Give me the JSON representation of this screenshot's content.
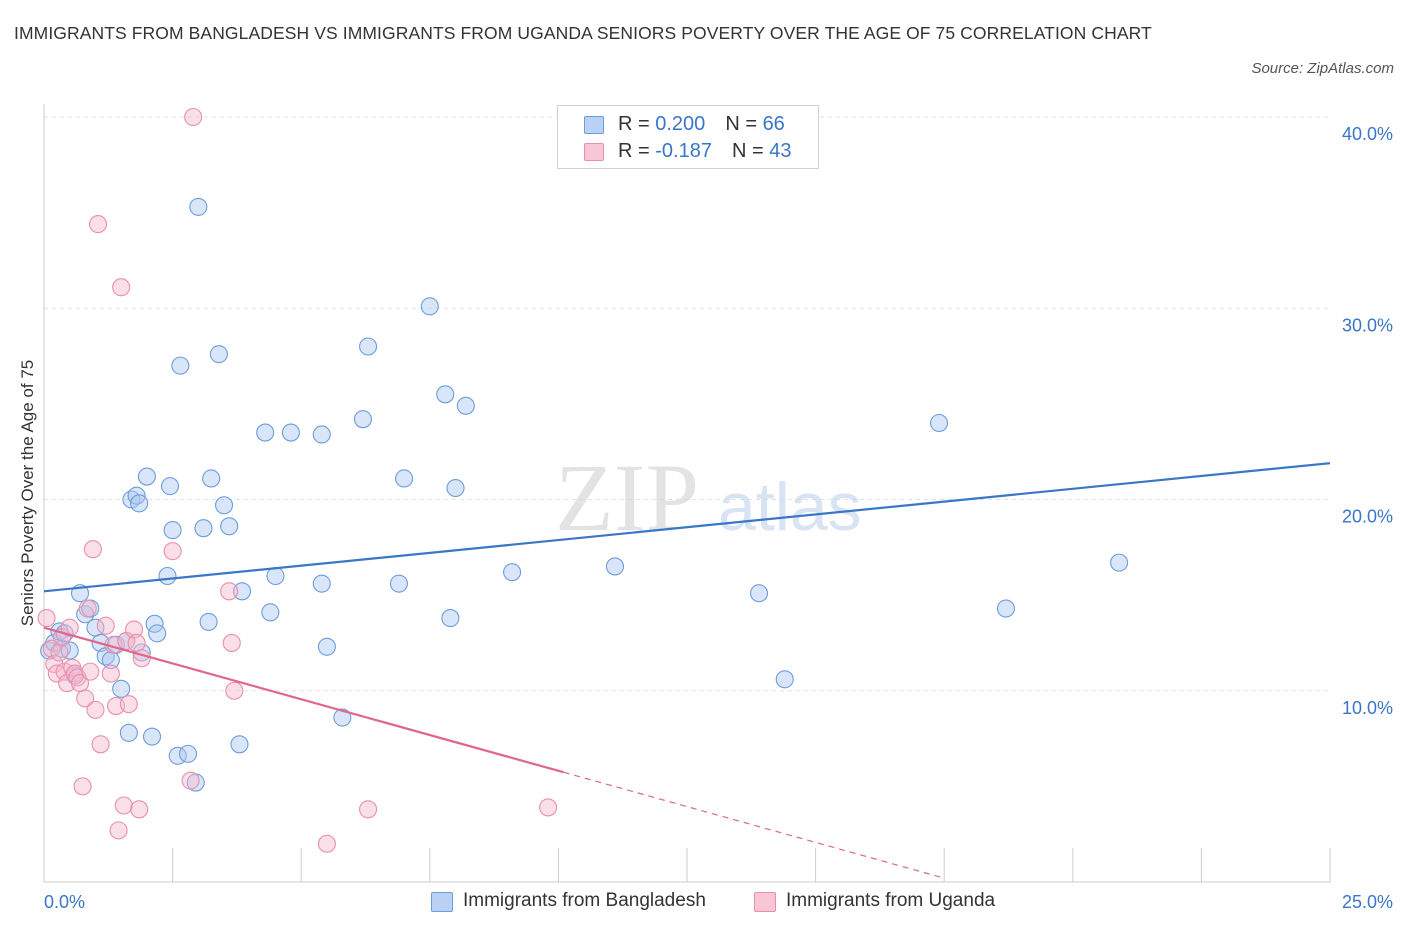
{
  "title": "IMMIGRANTS FROM BANGLADESH VS IMMIGRANTS FROM UGANDA SENIORS POVERTY OVER THE AGE OF 75 CORRELATION CHART",
  "source": "Source: ZipAtlas.com",
  "watermark": {
    "zip": "ZIP",
    "atlas": "atlas"
  },
  "colors": {
    "blue": "#3a76c8",
    "blue_fill": "#aac8f2",
    "pink": "#e0658f",
    "pink_fill": "#f7b8cc",
    "grid": "#e2e2e2"
  },
  "legend": {
    "rows": [
      {
        "r_label": "R = ",
        "r_value": "0.200",
        "n_label": "N = ",
        "n_value": "66"
      },
      {
        "r_label": "R = ",
        "r_value": "-0.187",
        "n_label": "N = ",
        "n_value": "43"
      }
    ]
  },
  "chart_data": {
    "type": "scatter",
    "title": "IMMIGRANTS FROM BANGLADESH VS IMMIGRANTS FROM UGANDA SENIORS POVERTY OVER THE AGE OF 75 CORRELATION CHART",
    "xlabel": "",
    "ylabel": "Seniors Poverty Over the Age of 75",
    "xlim": [
      0,
      25
    ],
    "ylim": [
      0,
      40
    ],
    "x_tick_labels": [
      "0.0%",
      "25.0%"
    ],
    "y_ticks": [
      10,
      20,
      30,
      40
    ],
    "y_tick_labels": [
      "10.0%",
      "20.0%",
      "30.0%",
      "40.0%"
    ],
    "grid": true,
    "legend_position": "top-center",
    "series": [
      {
        "name": "Immigrants from Bangladesh",
        "color": "#3a76c8",
        "trend": {
          "x": [
            0,
            25
          ],
          "y": [
            15.2,
            21.9
          ],
          "solid_to": 25
        },
        "points": [
          [
            0.1,
            12.1
          ],
          [
            0.2,
            12.5
          ],
          [
            0.3,
            13.1
          ],
          [
            0.35,
            12.2
          ],
          [
            0.4,
            13.0
          ],
          [
            0.5,
            12.1
          ],
          [
            0.6,
            10.8
          ],
          [
            0.7,
            15.1
          ],
          [
            0.8,
            14.0
          ],
          [
            0.9,
            14.3
          ],
          [
            1.0,
            13.3
          ],
          [
            1.1,
            12.5
          ],
          [
            1.2,
            11.8
          ],
          [
            1.3,
            11.6
          ],
          [
            1.4,
            12.4
          ],
          [
            1.5,
            10.1
          ],
          [
            1.6,
            12.6
          ],
          [
            1.65,
            7.8
          ],
          [
            1.7,
            20.0
          ],
          [
            1.8,
            20.2
          ],
          [
            1.85,
            19.8
          ],
          [
            1.9,
            12.0
          ],
          [
            2.0,
            21.2
          ],
          [
            2.1,
            7.6
          ],
          [
            2.15,
            13.5
          ],
          [
            2.2,
            13.0
          ],
          [
            2.4,
            16.0
          ],
          [
            2.45,
            20.7
          ],
          [
            2.5,
            18.4
          ],
          [
            2.6,
            6.6
          ],
          [
            2.65,
            27.0
          ],
          [
            2.8,
            6.7
          ],
          [
            2.95,
            5.2
          ],
          [
            3.0,
            35.3
          ],
          [
            3.1,
            18.5
          ],
          [
            3.2,
            13.6
          ],
          [
            3.25,
            21.1
          ],
          [
            3.4,
            27.6
          ],
          [
            3.5,
            19.7
          ],
          [
            3.6,
            18.6
          ],
          [
            3.8,
            7.2
          ],
          [
            3.85,
            15.2
          ],
          [
            4.3,
            23.5
          ],
          [
            4.4,
            14.1
          ],
          [
            4.5,
            16.0
          ],
          [
            4.8,
            23.5
          ],
          [
            5.4,
            23.4
          ],
          [
            5.4,
            15.6
          ],
          [
            5.5,
            12.3
          ],
          [
            5.8,
            8.6
          ],
          [
            6.2,
            24.2
          ],
          [
            6.3,
            28.0
          ],
          [
            6.9,
            15.6
          ],
          [
            7.0,
            21.1
          ],
          [
            7.5,
            30.1
          ],
          [
            7.8,
            25.5
          ],
          [
            7.9,
            13.8
          ],
          [
            8.0,
            20.6
          ],
          [
            8.2,
            24.9
          ],
          [
            9.1,
            16.2
          ],
          [
            11.1,
            16.5
          ],
          [
            13.9,
            15.1
          ],
          [
            14.4,
            10.6
          ],
          [
            17.4,
            24.0
          ],
          [
            18.7,
            14.3
          ],
          [
            20.9,
            16.7
          ]
        ]
      },
      {
        "name": "Immigrants from Uganda",
        "color": "#e0658f",
        "trend": {
          "x": [
            0,
            17.5
          ],
          "y": [
            13.3,
            0.2
          ],
          "solid_to": 10.1
        },
        "points": [
          [
            0.05,
            13.8
          ],
          [
            0.15,
            12.2
          ],
          [
            0.2,
            11.4
          ],
          [
            0.25,
            10.9
          ],
          [
            0.3,
            12.0
          ],
          [
            0.35,
            12.8
          ],
          [
            0.4,
            11.0
          ],
          [
            0.45,
            10.4
          ],
          [
            0.5,
            13.3
          ],
          [
            0.55,
            11.2
          ],
          [
            0.6,
            10.9
          ],
          [
            0.65,
            10.7
          ],
          [
            0.7,
            10.4
          ],
          [
            0.75,
            5.0
          ],
          [
            0.8,
            9.6
          ],
          [
            0.85,
            14.3
          ],
          [
            0.9,
            11.0
          ],
          [
            0.95,
            17.4
          ],
          [
            1.0,
            9.0
          ],
          [
            1.05,
            34.4
          ],
          [
            1.1,
            7.2
          ],
          [
            1.2,
            13.4
          ],
          [
            1.3,
            10.9
          ],
          [
            1.35,
            12.4
          ],
          [
            1.4,
            9.2
          ],
          [
            1.45,
            2.7
          ],
          [
            1.5,
            31.1
          ],
          [
            1.55,
            4.0
          ],
          [
            1.6,
            12.6
          ],
          [
            1.65,
            9.3
          ],
          [
            1.75,
            13.2
          ],
          [
            1.8,
            12.5
          ],
          [
            1.85,
            3.8
          ],
          [
            1.9,
            11.7
          ],
          [
            2.5,
            17.3
          ],
          [
            2.85,
            5.3
          ],
          [
            2.9,
            40.0
          ],
          [
            3.6,
            15.2
          ],
          [
            3.65,
            12.5
          ],
          [
            3.7,
            10.0
          ],
          [
            5.5,
            2.0
          ],
          [
            6.3,
            3.8
          ],
          [
            9.8,
            3.9
          ]
        ]
      }
    ]
  },
  "bottom_legend": [
    {
      "label": "Immigrants from Bangladesh"
    },
    {
      "label": "Immigrants from Uganda"
    }
  ]
}
